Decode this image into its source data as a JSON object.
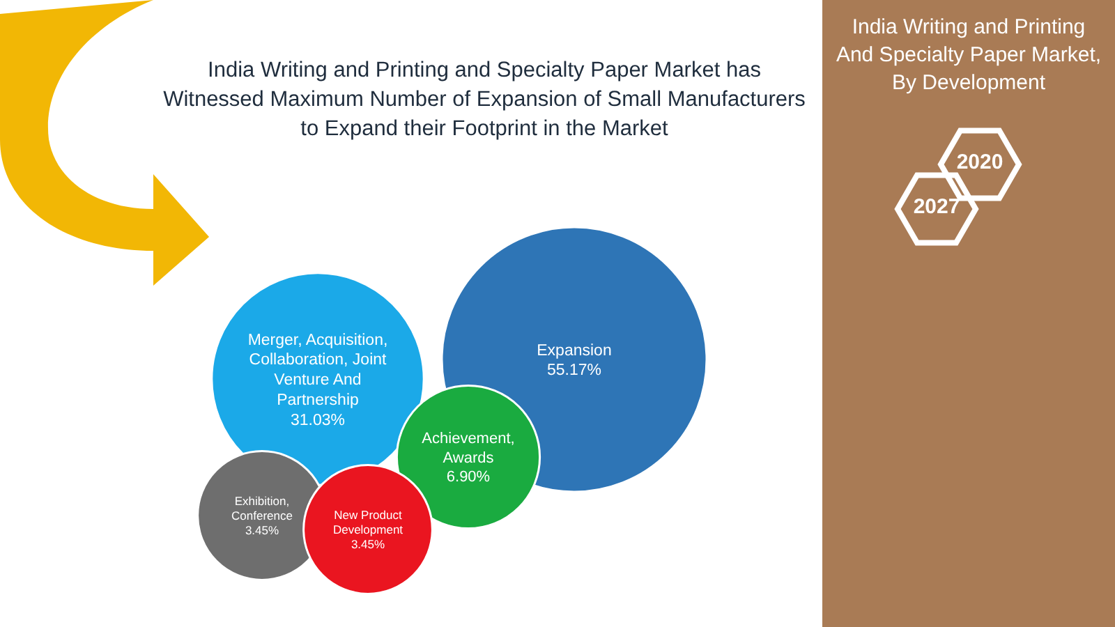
{
  "chart_data": {
    "type": "other",
    "title": "India Writing and Printing and Specialty Paper Market has Witnessed Maximum Number of Expansion of Small Manufacturers to Expand their Footprint in the Market",
    "subtitle": "India Writing and Printing And Specialty Paper Market, By Development",
    "categories": [
      "Expansion",
      "Merger, Acquisition, Collaboration, Joint Venture And Partnership",
      "Achievement, Awards",
      "Exhibition, Conference",
      "New Product Development"
    ],
    "values": [
      55.17,
      31.03,
      6.9,
      3.45,
      3.45
    ],
    "colors": [
      "#2e75b6",
      "#1ba9e8",
      "#1aab40",
      "#6e6e6e",
      "#ea1520"
    ],
    "value_labels": [
      "55.17%",
      "31.03%",
      "6.90%",
      "3.45%",
      "3.45%"
    ],
    "annotations": [
      "2020",
      "2027"
    ]
  }
}
